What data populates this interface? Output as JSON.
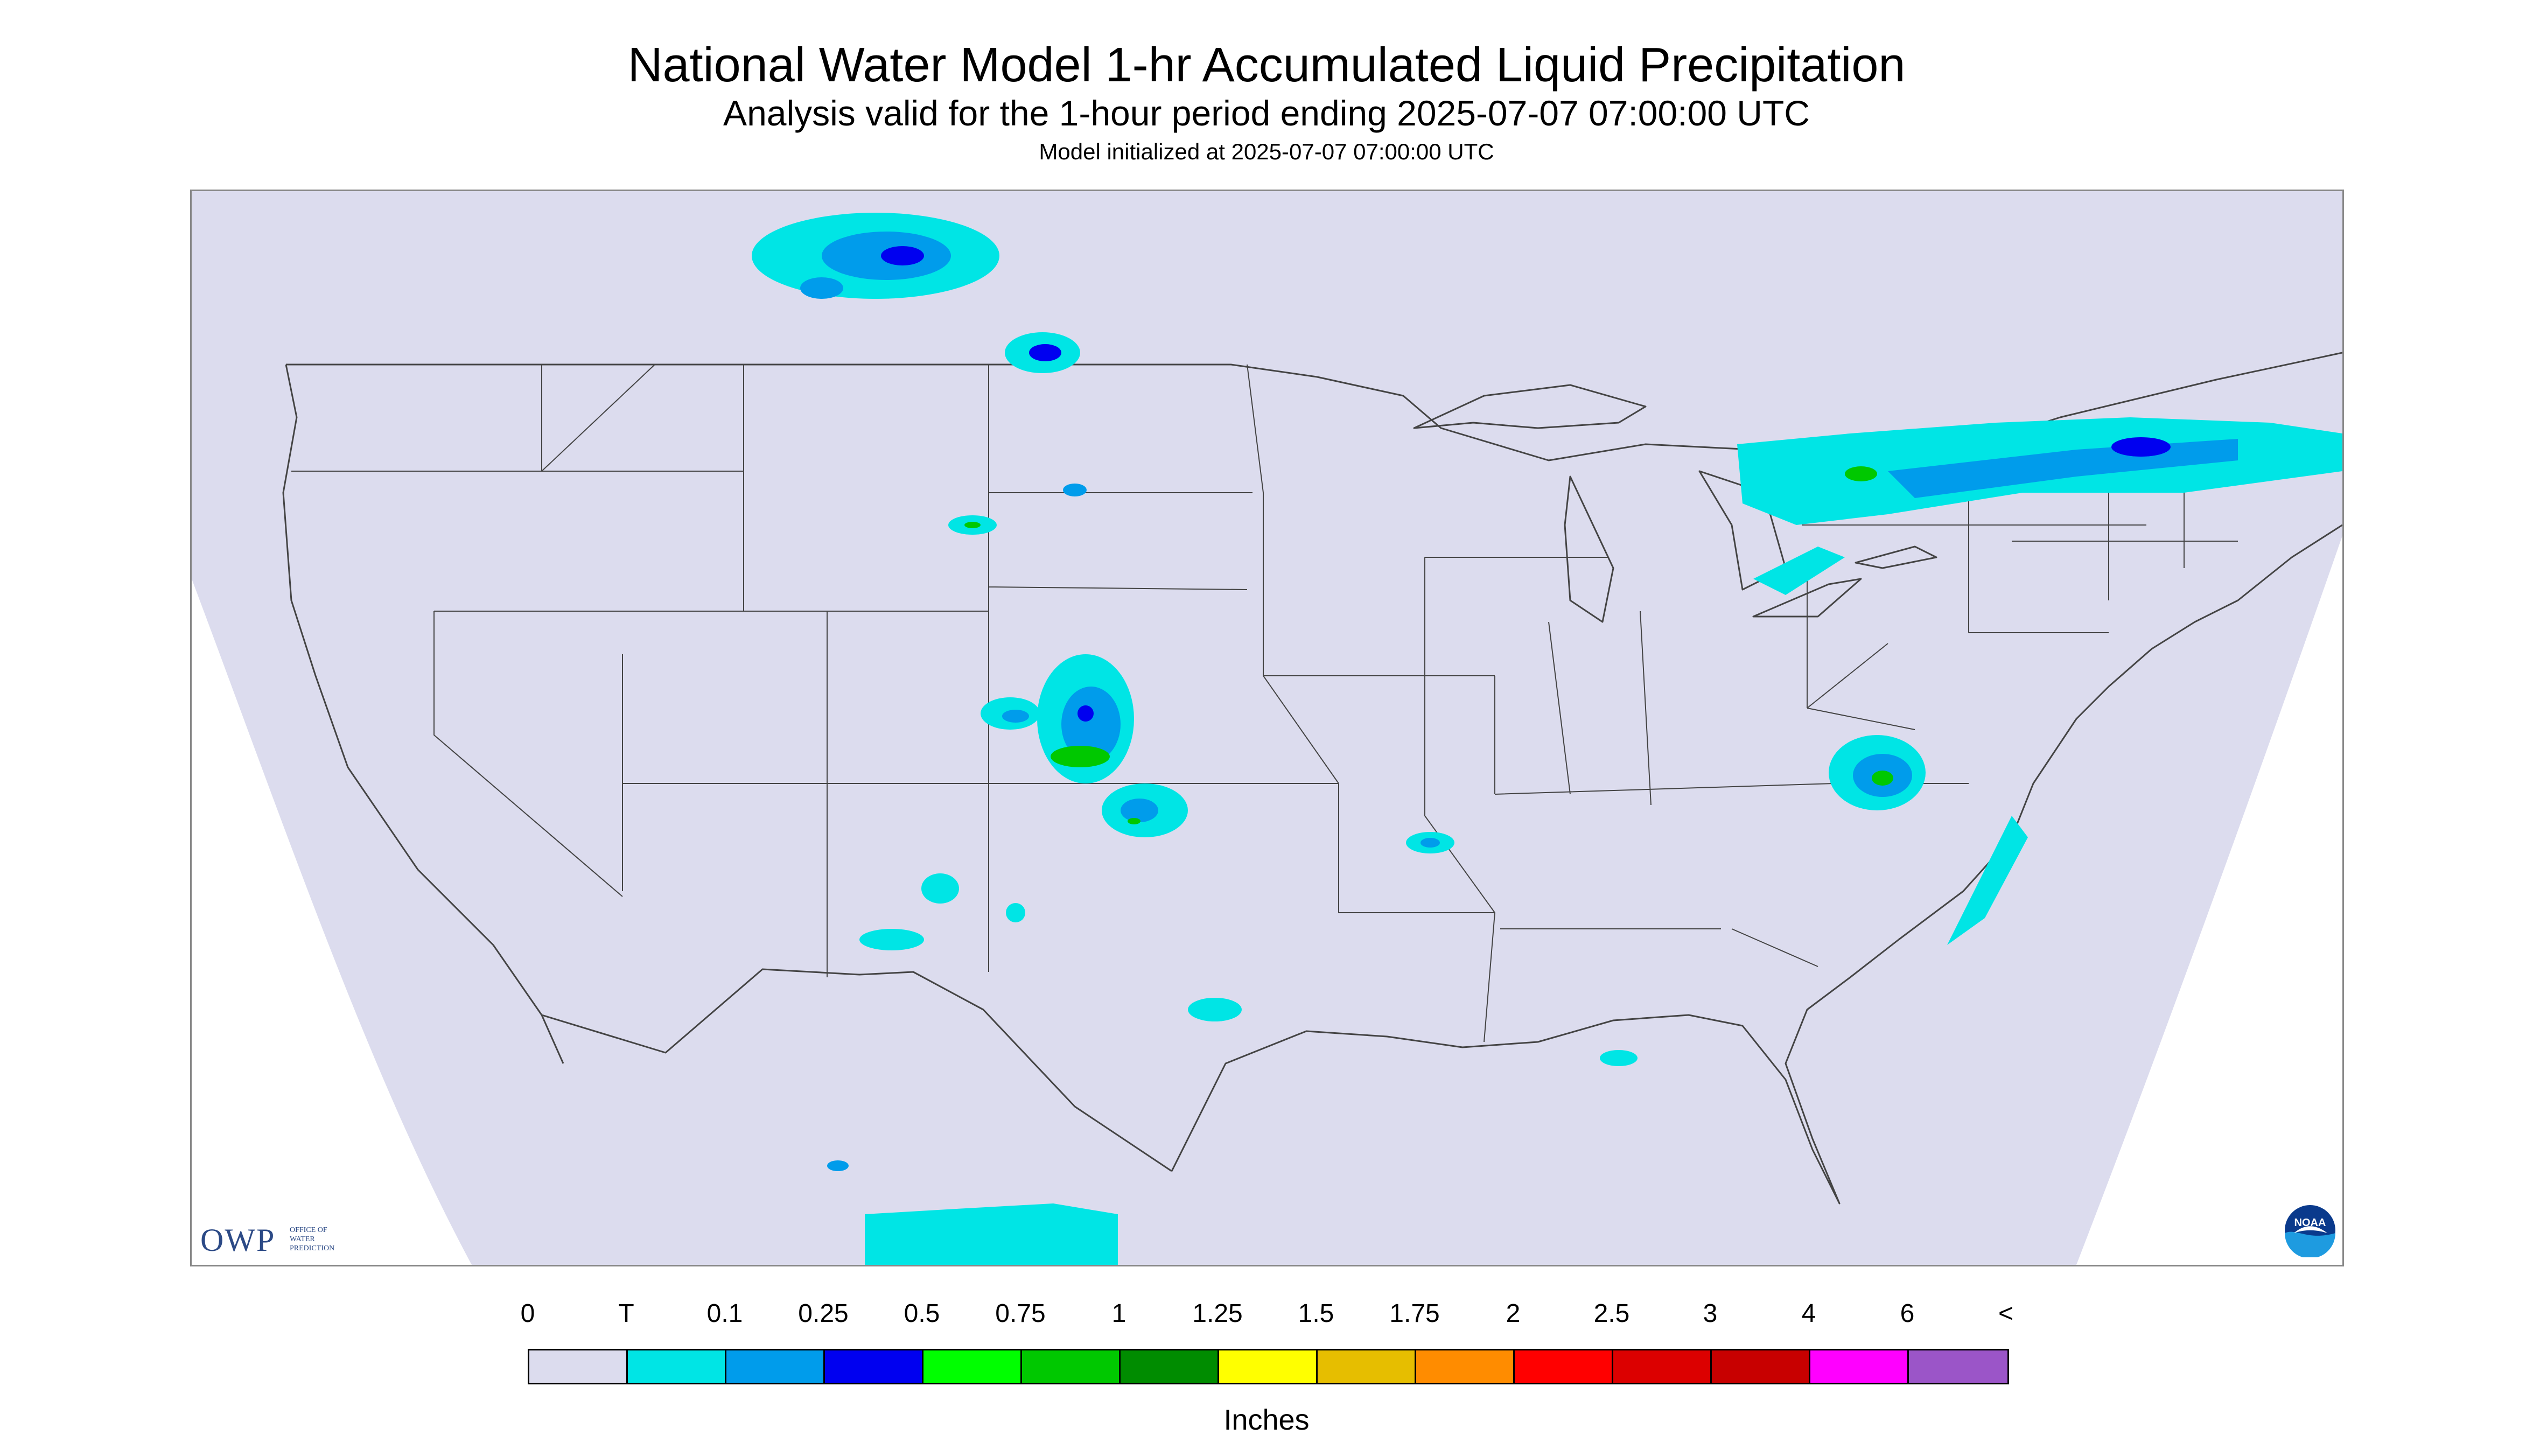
{
  "title": "National Water Model 1-hr Accumulated Liquid Precipitation",
  "subtitle": "Analysis valid for the 1-hour period ending 2025-07-07 07:00:00 UTC",
  "init_line": "Model initialized at 2025-07-07 07:00:00 UTC",
  "logos": {
    "owp_abbrev": "OWP",
    "owp_full": [
      "OFFICE OF",
      "WATER",
      "PREDICTION"
    ],
    "noaa": "NOAA"
  },
  "legend": {
    "units": "Inches",
    "labels": [
      "0",
      "T",
      "0.1",
      "0.25",
      "0.5",
      "0.75",
      "1",
      "1.25",
      "1.5",
      "1.75",
      "2",
      "2.5",
      "3",
      "4",
      "6",
      "<"
    ],
    "colors": [
      "#dcdcee",
      "#00e5e5",
      "#009ceb",
      "#0000f0",
      "#00ff00",
      "#00c800",
      "#008c00",
      "#ffff00",
      "#e6be00",
      "#ff8c00",
      "#ff0000",
      "#dc0000",
      "#c80000",
      "#ff00ff",
      "#9b55c8"
    ]
  },
  "map_colors": {
    "background": "#dcdcee",
    "boundaries": "#444444",
    "trace": "#00e5e5",
    "light": "#009ceb",
    "moderate": "#0000f0",
    "heavy": "#00c800"
  }
}
